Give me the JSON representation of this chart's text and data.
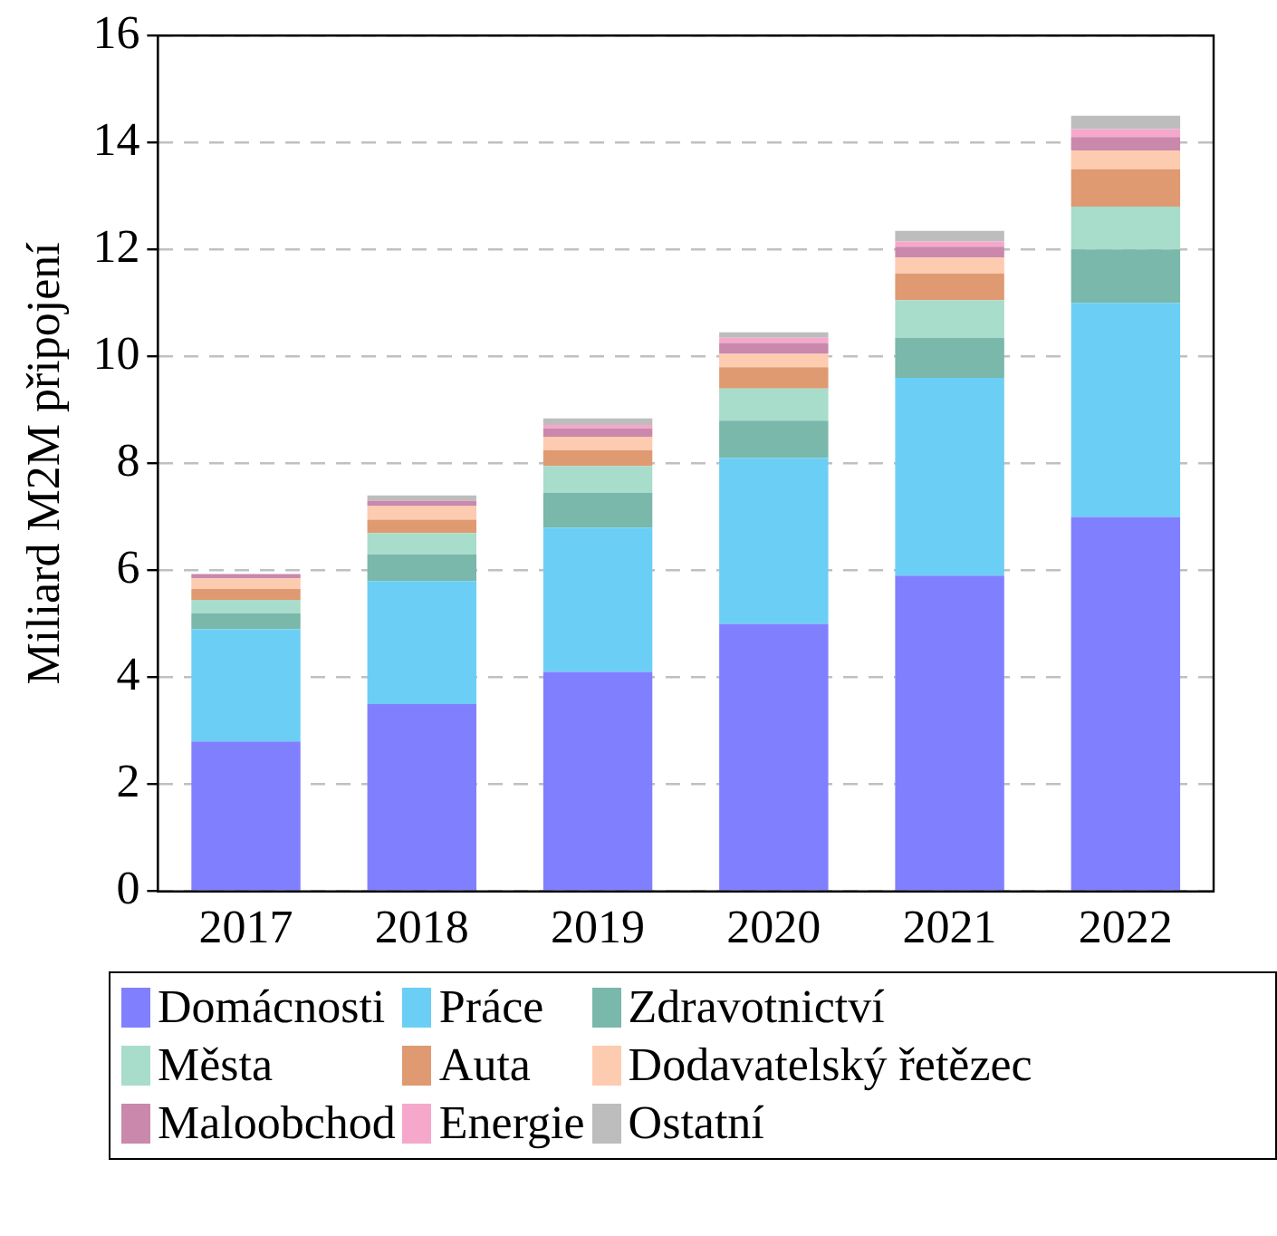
{
  "chart_data": {
    "type": "bar",
    "stacked": true,
    "ylabel": "Miliard M2M připojení",
    "categories": [
      "2017",
      "2018",
      "2019",
      "2020",
      "2021",
      "2022"
    ],
    "ylim": [
      0,
      16
    ],
    "yticks": [
      0,
      2,
      4,
      6,
      8,
      10,
      12,
      14,
      16
    ],
    "grid": "y",
    "legend": "bottom",
    "series": [
      {
        "name": "Domácnosti",
        "color": "#8080ff",
        "values": [
          2.8,
          3.5,
          4.1,
          5.0,
          5.9,
          7.0
        ]
      },
      {
        "name": "Práce",
        "color": "#6bcff5",
        "values": [
          2.1,
          2.3,
          2.7,
          3.1,
          3.7,
          4.0
        ]
      },
      {
        "name": "Zdravotnictví",
        "color": "#79b8ab",
        "values": [
          0.3,
          0.5,
          0.65,
          0.7,
          0.75,
          1.0
        ]
      },
      {
        "name": "Města",
        "color": "#a8dccb",
        "values": [
          0.25,
          0.4,
          0.5,
          0.6,
          0.7,
          0.8
        ]
      },
      {
        "name": "Auta",
        "color": "#df9a72",
        "values": [
          0.2,
          0.25,
          0.3,
          0.4,
          0.5,
          0.7
        ]
      },
      {
        "name": "Dodavatelský řetězec",
        "color": "#fdcbb0",
        "values": [
          0.2,
          0.25,
          0.25,
          0.25,
          0.3,
          0.35
        ]
      },
      {
        "name": "Maloobchod",
        "color": "#c988ac",
        "values": [
          0.08,
          0.1,
          0.15,
          0.2,
          0.2,
          0.25
        ]
      },
      {
        "name": "Energie",
        "color": "#f5a8cc",
        "values": [
          null,
          null,
          0.07,
          0.1,
          0.1,
          0.15
        ]
      },
      {
        "name": "Ostatní",
        "color": "#bdbdbd",
        "values": [
          null,
          0.1,
          0.12,
          0.1,
          0.2,
          0.25
        ]
      }
    ]
  }
}
